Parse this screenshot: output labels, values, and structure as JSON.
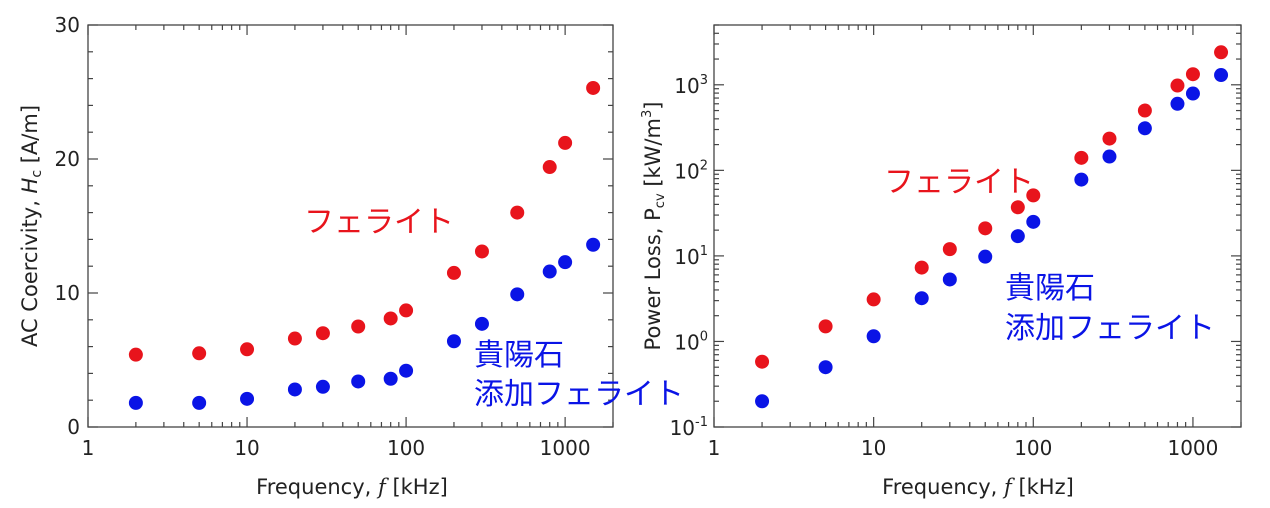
{
  "colors": {
    "ferrite": "#e8141c",
    "added": "#0a14e6"
  },
  "chart_data": [
    {
      "type": "scatter",
      "xlabel": "Frequency, ",
      "xlabel_var": "f",
      "xlabel_unit": " [kHz]",
      "ylabel": "AC Coercivity, ",
      "ylabel_var": "H",
      "ylabel_sub": "c",
      "ylabel_unit": " [A/m]",
      "xscale": "log",
      "xlim": [
        1,
        2000
      ],
      "ylim": [
        0,
        30
      ],
      "xticks": [
        1,
        10,
        100,
        1000
      ],
      "xtick_labels": [
        "1",
        "10",
        "100",
        "1000"
      ],
      "yticks": [
        0,
        10,
        20,
        30
      ],
      "ytick_labels": [
        "0",
        "10",
        "20",
        "30"
      ],
      "annotations": [
        "フェライト",
        "貴陽石",
        "添加フェライト"
      ],
      "series": [
        {
          "name": "フェライト",
          "x": [
            2,
            5,
            10,
            20,
            30,
            50,
            80,
            100,
            200,
            300,
            500,
            800,
            1000,
            1500
          ],
          "y": [
            5.4,
            5.5,
            5.8,
            6.6,
            7.0,
            7.5,
            8.1,
            8.7,
            11.5,
            13.1,
            16.0,
            19.4,
            21.2,
            25.3
          ]
        },
        {
          "name": "貴陽石添加フェライト",
          "x": [
            2,
            5,
            10,
            20,
            30,
            50,
            80,
            100,
            200,
            300,
            500,
            800,
            1000,
            1500
          ],
          "y": [
            1.8,
            1.8,
            2.1,
            2.8,
            3.0,
            3.4,
            3.6,
            4.2,
            6.4,
            7.7,
            9.9,
            11.6,
            12.3,
            13.6
          ]
        }
      ]
    },
    {
      "type": "scatter",
      "xlabel": "Frequency, ",
      "xlabel_var": "f",
      "xlabel_unit": " [kHz]",
      "ylabel": "Power Loss, P",
      "ylabel_sub": "cv",
      "ylabel_unit": " [kW/m",
      "ylabel_sup": "3",
      "ylabel_end": "]",
      "xscale": "log",
      "yscale": "log",
      "xlim": [
        1,
        2000
      ],
      "ylim": [
        0.1,
        5000
      ],
      "xticks": [
        1,
        10,
        100,
        1000
      ],
      "xtick_labels": [
        "1",
        "10",
        "100",
        "1000"
      ],
      "ytick_base": "10",
      "ytick_exponents": [
        "-1",
        "0",
        "1",
        "2",
        "3"
      ],
      "annotations": [
        "フェライト",
        "貴陽石",
        "添加フェライト"
      ],
      "series": [
        {
          "name": "フェライト",
          "x": [
            2,
            5,
            10,
            20,
            30,
            50,
            80,
            100,
            200,
            300,
            500,
            800,
            1000,
            1500
          ],
          "y": [
            0.58,
            1.5,
            3.1,
            7.3,
            12,
            21,
            37,
            51,
            140,
            235,
            500,
            980,
            1330,
            2400
          ]
        },
        {
          "name": "貴陽石添加フェライト",
          "x": [
            2,
            5,
            10,
            20,
            30,
            50,
            80,
            100,
            200,
            300,
            500,
            800,
            1000,
            1500
          ],
          "y": [
            0.2,
            0.5,
            1.15,
            3.2,
            5.3,
            9.8,
            17,
            25,
            78,
            145,
            310,
            600,
            790,
            1300
          ]
        }
      ]
    }
  ]
}
